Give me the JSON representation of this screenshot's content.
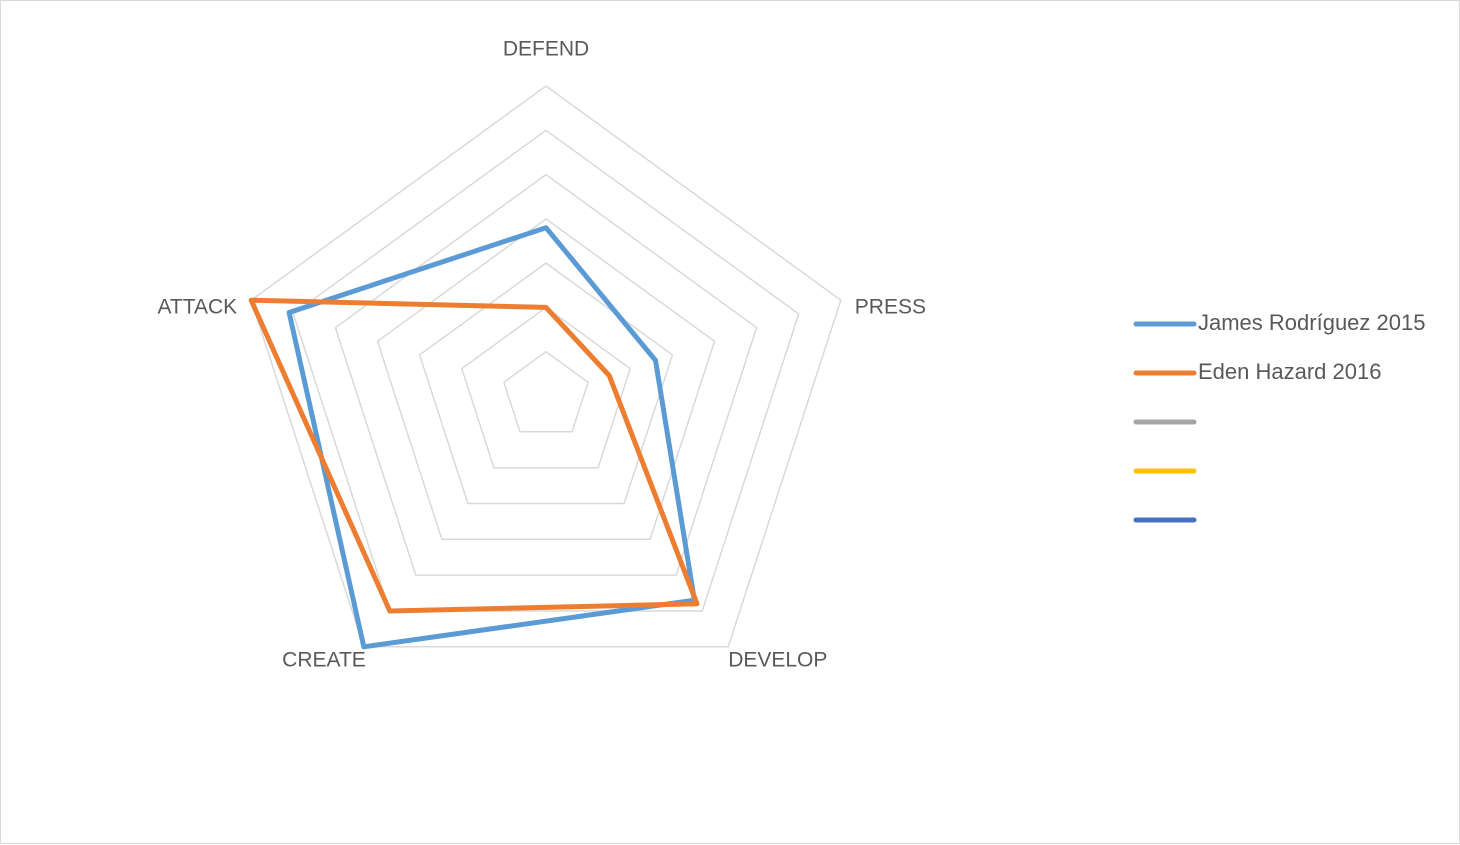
{
  "chart_data": {
    "type": "radar",
    "title": "",
    "axes": [
      "DEFEND",
      "PRESS",
      "DEVELOP",
      "CREATE",
      "ATTACK"
    ],
    "rlim": [
      0,
      7
    ],
    "gridlines": true,
    "grid_levels": [
      1,
      2,
      3,
      4,
      5,
      6,
      7
    ],
    "legend_position": "right",
    "series": [
      {
        "name": "James Rodríguez 2015",
        "color": "#5b9bd5",
        "values": [
          3.8,
          2.6,
          5.7,
          7.0,
          6.1
        ]
      },
      {
        "name": "Eden Hazard 2016",
        "color": "#ed7d31",
        "values": [
          2.0,
          1.5,
          5.8,
          6.0,
          7.0
        ]
      },
      {
        "name": "",
        "color": "#a5a5a5",
        "values": []
      },
      {
        "name": "",
        "color": "#ffc000",
        "values": []
      },
      {
        "name": "",
        "color": "#4472c4",
        "values": []
      }
    ]
  }
}
